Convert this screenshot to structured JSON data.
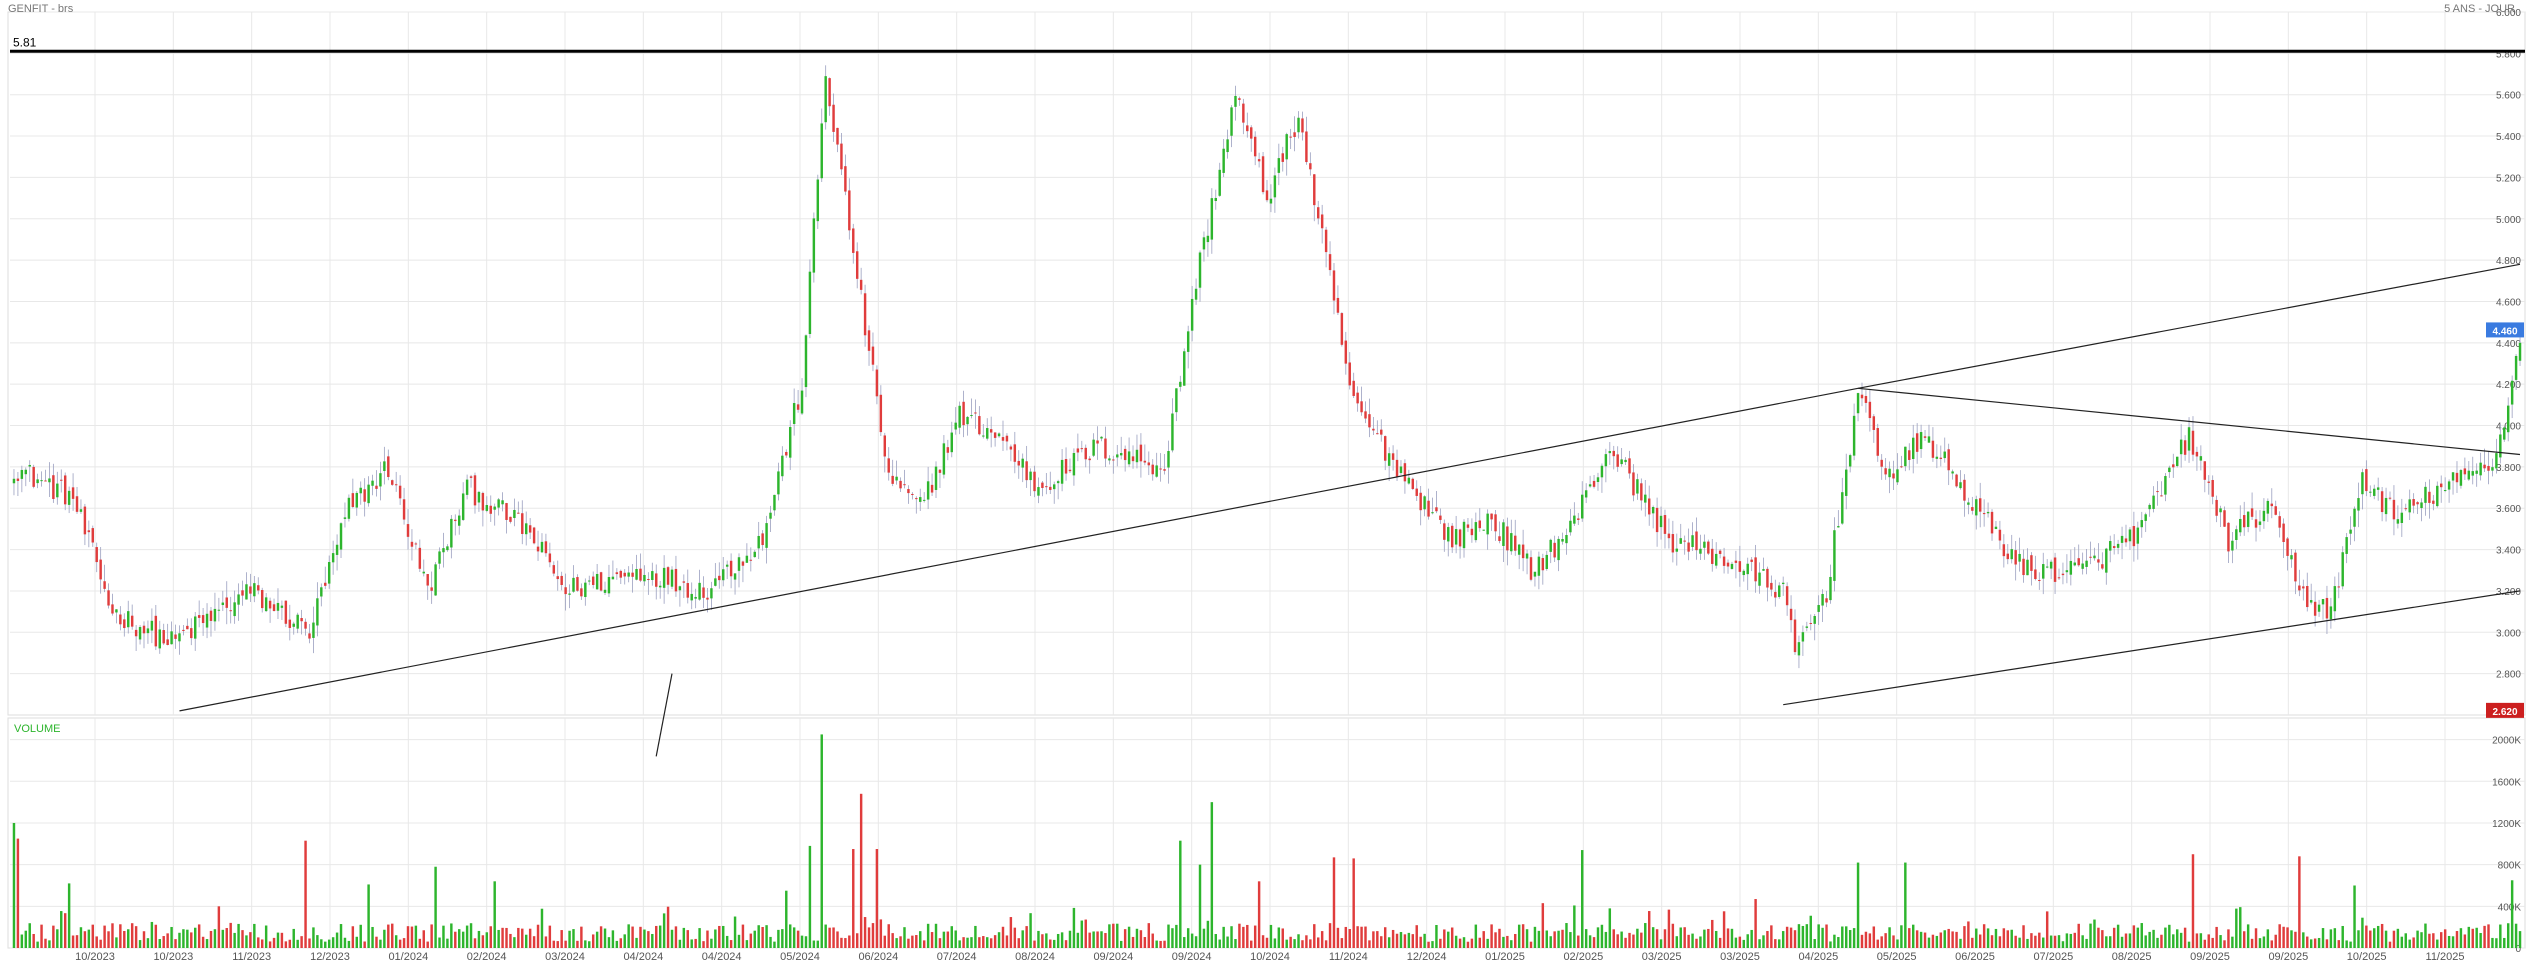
{
  "header": {
    "instrument": "GENFIT - brs",
    "period": "5 ANS - JOUR"
  },
  "price_panel": {
    "resistance_label": "5.81",
    "resistance_value": 5.81,
    "last_price_label": "4.460",
    "low_price_label": "2.620"
  },
  "volume_panel": {
    "label": "VOLUME"
  },
  "colors": {
    "up": "#2db52d",
    "down": "#e03c3c",
    "last_price_badge": "#3a7be0",
    "low_price_badge": "#cc1f1f",
    "trendline": "#222222",
    "grid": "#e8e8e8"
  },
  "chart_data": [
    {
      "type": "candlestick",
      "title": "GENFIT - brs",
      "ylim": [
        2.6,
        6.0
      ],
      "y_ticks": [
        "6.000",
        "5.800",
        "5.600",
        "5.400",
        "5.200",
        "5.000",
        "4.800",
        "4.600",
        "4.400",
        "4.200",
        "4.000",
        "3.800",
        "3.600",
        "3.400",
        "3.200",
        "3.000",
        "2.800"
      ],
      "x_ticks": [
        "10/2023",
        "10/2023",
        "11/2023",
        "12/2023",
        "01/2024",
        "02/2024",
        "03/2024",
        "04/2024",
        "04/2024",
        "05/2024",
        "06/2024",
        "07/2024",
        "08/2024",
        "09/2024",
        "09/2024",
        "10/2024",
        "11/2024",
        "12/2024",
        "01/2025",
        "02/2025",
        "03/2025",
        "03/2025",
        "04/2025",
        "05/2025",
        "06/2025",
        "07/2025",
        "08/2025",
        "09/2025",
        "09/2025",
        "10/2025",
        "11/2025"
      ],
      "close_keypoints": [
        {
          "i": 0,
          "v": 3.8
        },
        {
          "i": 15,
          "v": 3.65
        },
        {
          "i": 25,
          "v": 3.1
        },
        {
          "i": 40,
          "v": 2.95
        },
        {
          "i": 60,
          "v": 3.2
        },
        {
          "i": 75,
          "v": 3.0
        },
        {
          "i": 85,
          "v": 3.6
        },
        {
          "i": 95,
          "v": 3.8
        },
        {
          "i": 105,
          "v": 3.2
        },
        {
          "i": 115,
          "v": 3.7
        },
        {
          "i": 130,
          "v": 3.5
        },
        {
          "i": 140,
          "v": 3.2
        },
        {
          "i": 160,
          "v": 3.3
        },
        {
          "i": 175,
          "v": 3.2
        },
        {
          "i": 190,
          "v": 3.45
        },
        {
          "i": 200,
          "v": 4.2
        },
        {
          "i": 206,
          "v": 5.7
        },
        {
          "i": 215,
          "v": 4.6
        },
        {
          "i": 222,
          "v": 3.75
        },
        {
          "i": 230,
          "v": 3.6
        },
        {
          "i": 240,
          "v": 4.05
        },
        {
          "i": 250,
          "v": 3.95
        },
        {
          "i": 260,
          "v": 3.7
        },
        {
          "i": 275,
          "v": 3.9
        },
        {
          "i": 292,
          "v": 3.8
        },
        {
          "i": 300,
          "v": 4.7
        },
        {
          "i": 310,
          "v": 5.6
        },
        {
          "i": 318,
          "v": 5.1
        },
        {
          "i": 326,
          "v": 5.5
        },
        {
          "i": 335,
          "v": 4.6
        },
        {
          "i": 340,
          "v": 4.1
        },
        {
          "i": 355,
          "v": 3.7
        },
        {
          "i": 365,
          "v": 3.45
        },
        {
          "i": 375,
          "v": 3.55
        },
        {
          "i": 385,
          "v": 3.3
        },
        {
          "i": 395,
          "v": 3.5
        },
        {
          "i": 405,
          "v": 3.9
        },
        {
          "i": 420,
          "v": 3.45
        },
        {
          "i": 435,
          "v": 3.35
        },
        {
          "i": 449,
          "v": 3.2
        },
        {
          "i": 452,
          "v": 2.9
        },
        {
          "i": 460,
          "v": 3.2
        },
        {
          "i": 468,
          "v": 4.15
        },
        {
          "i": 476,
          "v": 3.75
        },
        {
          "i": 485,
          "v": 3.95
        },
        {
          "i": 498,
          "v": 3.6
        },
        {
          "i": 510,
          "v": 3.3
        },
        {
          "i": 525,
          "v": 3.3
        },
        {
          "i": 540,
          "v": 3.5
        },
        {
          "i": 552,
          "v": 3.95
        },
        {
          "i": 562,
          "v": 3.45
        },
        {
          "i": 572,
          "v": 3.6
        },
        {
          "i": 582,
          "v": 3.15
        },
        {
          "i": 588,
          "v": 3.1
        },
        {
          "i": 596,
          "v": 3.75
        },
        {
          "i": 605,
          "v": 3.55
        },
        {
          "i": 612,
          "v": 3.65
        },
        {
          "i": 622,
          "v": 3.75
        },
        {
          "i": 630,
          "v": 3.85
        },
        {
          "i": 636,
          "v": 4.4
        }
      ],
      "volume": {
        "ylim": [
          0,
          2150000
        ],
        "y_ticks": [
          "2000K",
          "1600K",
          "1200K",
          "800K",
          "400K",
          "0"
        ],
        "spikes": [
          {
            "i": 0,
            "v": 1200000
          },
          {
            "i": 1,
            "v": 1050000
          },
          {
            "i": 14,
            "v": 620000
          },
          {
            "i": 52,
            "v": 400000
          },
          {
            "i": 74,
            "v": 1030000
          },
          {
            "i": 90,
            "v": 610000
          },
          {
            "i": 107,
            "v": 780000
          },
          {
            "i": 122,
            "v": 640000
          },
          {
            "i": 196,
            "v": 550000
          },
          {
            "i": 202,
            "v": 980000
          },
          {
            "i": 205,
            "v": 2050000
          },
          {
            "i": 213,
            "v": 950000
          },
          {
            "i": 215,
            "v": 1480000
          },
          {
            "i": 219,
            "v": 950000
          },
          {
            "i": 296,
            "v": 1030000
          },
          {
            "i": 301,
            "v": 800000
          },
          {
            "i": 304,
            "v": 1400000
          },
          {
            "i": 316,
            "v": 640000
          },
          {
            "i": 335,
            "v": 870000
          },
          {
            "i": 340,
            "v": 860000
          },
          {
            "i": 398,
            "v": 940000
          },
          {
            "i": 442,
            "v": 470000
          },
          {
            "i": 468,
            "v": 820000
          },
          {
            "i": 480,
            "v": 820000
          },
          {
            "i": 553,
            "v": 900000
          },
          {
            "i": 580,
            "v": 880000
          },
          {
            "i": 594,
            "v": 600000
          },
          {
            "i": 634,
            "v": 650000
          }
        ]
      },
      "trendlines": [
        {
          "name": "main-uptrend",
          "points": [
            {
              "i": 42,
              "v": 2.62
            },
            {
              "i": 468,
              "v": 4.18
            },
            {
              "i": 636,
              "v": 4.78
            }
          ]
        },
        {
          "name": "lower-channel",
          "points": [
            {
              "i": 449,
              "v": 2.65
            },
            {
              "i": 636,
              "v": 3.2
            }
          ]
        },
        {
          "name": "descending-resistance",
          "points": [
            {
              "i": 468,
              "v": 4.18
            },
            {
              "i": 636,
              "v": 3.86
            }
          ]
        },
        {
          "name": "short-segment",
          "points": [
            {
              "i": 163,
              "v": 2.4
            },
            {
              "i": 167,
              "v": 2.8
            }
          ]
        }
      ],
      "n_bars": 637,
      "seed": 12345
    }
  ]
}
